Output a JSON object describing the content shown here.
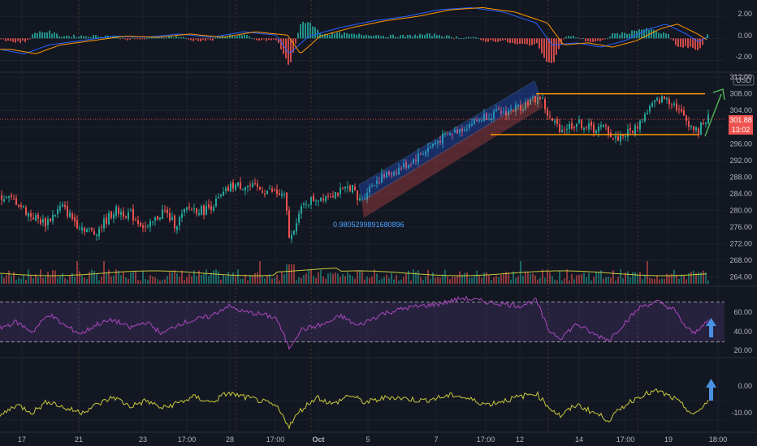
{
  "price_axis": {
    "currency": "USD",
    "ticks": [
      "312.00",
      "308.00",
      "304.00",
      "300.00",
      "296.00",
      "292.00",
      "288.00",
      "284.00",
      "280.00",
      "276.00",
      "272.00",
      "268.00",
      "264.00"
    ],
    "last_price": "301.88",
    "countdown": "13:02"
  },
  "macd_axis": {
    "ticks": [
      "2.00",
      "0.00",
      "-2.00"
    ]
  },
  "rsi_axis": {
    "ticks": [
      "60.00",
      "40.00",
      "20.00"
    ]
  },
  "cci_axis": {
    "ticks": [
      "0.00",
      "-10.00"
    ]
  },
  "time_axis": {
    "labels": [
      "17",
      "21",
      "23",
      "17:00",
      "28",
      "17:00",
      "Oct",
      "5",
      "7",
      "17:00",
      "12",
      "14",
      "17:00",
      "19",
      "18:00"
    ]
  },
  "annotations": {
    "channel_label": "0.9805299891680896"
  },
  "colors": {
    "background": "#131722",
    "up": "#26a69a",
    "down": "#ef5350",
    "macd": "#2962ff",
    "signal": "#ff9800",
    "rsi": "#ab47bc",
    "cci": "#c8c83a",
    "range_lines": "#ff9800",
    "arrow_green": "#4caf50",
    "arrow_blue": "#4a90e2",
    "volume_ma": "#c8c83a"
  },
  "chart_data": {
    "type": "candlestick",
    "price_range": [
      262,
      313
    ],
    "range_box": {
      "top": 308,
      "bottom": 298.2
    },
    "price_key_points": [
      [
        0,
        283.5
      ],
      [
        20,
        282
      ],
      [
        35,
        279
      ],
      [
        55,
        277
      ],
      [
        75,
        281
      ],
      [
        95,
        276.5
      ],
      [
        115,
        274.5
      ],
      [
        140,
        280
      ],
      [
        160,
        279
      ],
      [
        180,
        275.5
      ],
      [
        200,
        280
      ],
      [
        215,
        276.5
      ],
      [
        230,
        280.5
      ],
      [
        250,
        280
      ],
      [
        265,
        282
      ],
      [
        275,
        284
      ],
      [
        285,
        286
      ],
      [
        300,
        286
      ],
      [
        320,
        285
      ],
      [
        335,
        284.5
      ],
      [
        350,
        283
      ],
      [
        356,
        272
      ],
      [
        362,
        277
      ],
      [
        375,
        282
      ],
      [
        390,
        283
      ],
      [
        405,
        284
      ],
      [
        420,
        284.5
      ],
      [
        432,
        286
      ],
      [
        440,
        282
      ],
      [
        460,
        287
      ],
      [
        480,
        289
      ],
      [
        500,
        291
      ],
      [
        520,
        294
      ],
      [
        540,
        297
      ],
      [
        560,
        299
      ],
      [
        580,
        301
      ],
      [
        600,
        303
      ],
      [
        620,
        303.5
      ],
      [
        640,
        305
      ],
      [
        655,
        306.5
      ],
      [
        665,
        307.3
      ],
      [
        675,
        302
      ],
      [
        690,
        299.5
      ],
      [
        710,
        301
      ],
      [
        730,
        299.5
      ],
      [
        745,
        300
      ],
      [
        755,
        297
      ],
      [
        765,
        298
      ],
      [
        780,
        299.5
      ],
      [
        790,
        302
      ],
      [
        800,
        305
      ],
      [
        810,
        306.5
      ],
      [
        820,
        307
      ],
      [
        830,
        305.5
      ],
      [
        840,
        302.5
      ],
      [
        850,
        300.5
      ],
      [
        858,
        298.5
      ],
      [
        865,
        301.5
      ],
      [
        872,
        302
      ]
    ],
    "macd_range": [
      -3.0,
      3.2
    ],
    "macd_key_points": [
      [
        0,
        -1.0
      ],
      [
        30,
        -1.4
      ],
      [
        60,
        -0.6
      ],
      [
        100,
        -0.2
      ],
      [
        140,
        0.2
      ],
      [
        180,
        0.1
      ],
      [
        220,
        0.4
      ],
      [
        260,
        0.1
      ],
      [
        300,
        0.6
      ],
      [
        340,
        0.3
      ],
      [
        356,
        -1.4
      ],
      [
        380,
        0.2
      ],
      [
        420,
        1.0
      ],
      [
        460,
        1.6
      ],
      [
        500,
        2.0
      ],
      [
        540,
        2.6
      ],
      [
        580,
        2.8
      ],
      [
        620,
        2.4
      ],
      [
        660,
        1.4
      ],
      [
        680,
        -0.6
      ],
      [
        710,
        -0.4
      ],
      [
        740,
        -0.8
      ],
      [
        770,
        -0.2
      ],
      [
        800,
        0.9
      ],
      [
        820,
        1.3
      ],
      [
        845,
        0.4
      ],
      [
        860,
        -0.3
      ],
      [
        870,
        0.1
      ]
    ],
    "rsi_range": [
      15,
      85
    ],
    "rsi_levels": [
      70,
      30
    ],
    "rsi_key_points": [
      [
        0,
        44
      ],
      [
        20,
        50
      ],
      [
        40,
        40
      ],
      [
        60,
        58
      ],
      [
        80,
        46
      ],
      [
        100,
        38
      ],
      [
        120,
        48
      ],
      [
        140,
        52
      ],
      [
        160,
        44
      ],
      [
        180,
        50
      ],
      [
        200,
        38
      ],
      [
        220,
        48
      ],
      [
        240,
        52
      ],
      [
        260,
        56
      ],
      [
        280,
        66
      ],
      [
        300,
        60
      ],
      [
        320,
        58
      ],
      [
        340,
        54
      ],
      [
        356,
        24
      ],
      [
        370,
        42
      ],
      [
        400,
        48
      ],
      [
        420,
        56
      ],
      [
        440,
        46
      ],
      [
        470,
        58
      ],
      [
        500,
        64
      ],
      [
        540,
        68
      ],
      [
        570,
        74
      ],
      [
        600,
        70
      ],
      [
        640,
        66
      ],
      [
        660,
        72
      ],
      [
        675,
        42
      ],
      [
        690,
        34
      ],
      [
        710,
        48
      ],
      [
        730,
        38
      ],
      [
        750,
        32
      ],
      [
        770,
        50
      ],
      [
        790,
        66
      ],
      [
        810,
        70
      ],
      [
        830,
        62
      ],
      [
        845,
        44
      ],
      [
        855,
        38
      ],
      [
        865,
        48
      ],
      [
        872,
        50
      ]
    ],
    "cci_range": [
      -16,
      22
    ],
    "cci_key_points": [
      [
        0,
        -8
      ],
      [
        20,
        -2
      ],
      [
        40,
        -6
      ],
      [
        60,
        0
      ],
      [
        80,
        -4
      ],
      [
        100,
        -6
      ],
      [
        120,
        -2
      ],
      [
        140,
        2
      ],
      [
        160,
        -3
      ],
      [
        180,
        0
      ],
      [
        200,
        -4
      ],
      [
        220,
        -1
      ],
      [
        240,
        2
      ],
      [
        260,
        -1
      ],
      [
        280,
        4
      ],
      [
        300,
        2
      ],
      [
        320,
        0
      ],
      [
        340,
        -3
      ],
      [
        356,
        -13
      ],
      [
        370,
        -5
      ],
      [
        390,
        2
      ],
      [
        410,
        -2
      ],
      [
        430,
        3
      ],
      [
        450,
        -1
      ],
      [
        480,
        2
      ],
      [
        520,
        0
      ],
      [
        560,
        3
      ],
      [
        600,
        -2
      ],
      [
        630,
        1
      ],
      [
        660,
        4
      ],
      [
        675,
        -3
      ],
      [
        690,
        -8
      ],
      [
        710,
        -2
      ],
      [
        730,
        -6
      ],
      [
        750,
        -10
      ],
      [
        770,
        -2
      ],
      [
        790,
        3
      ],
      [
        810,
        5
      ],
      [
        830,
        1
      ],
      [
        845,
        -4
      ],
      [
        855,
        -8
      ],
      [
        865,
        -3
      ],
      [
        872,
        0
      ]
    ]
  }
}
